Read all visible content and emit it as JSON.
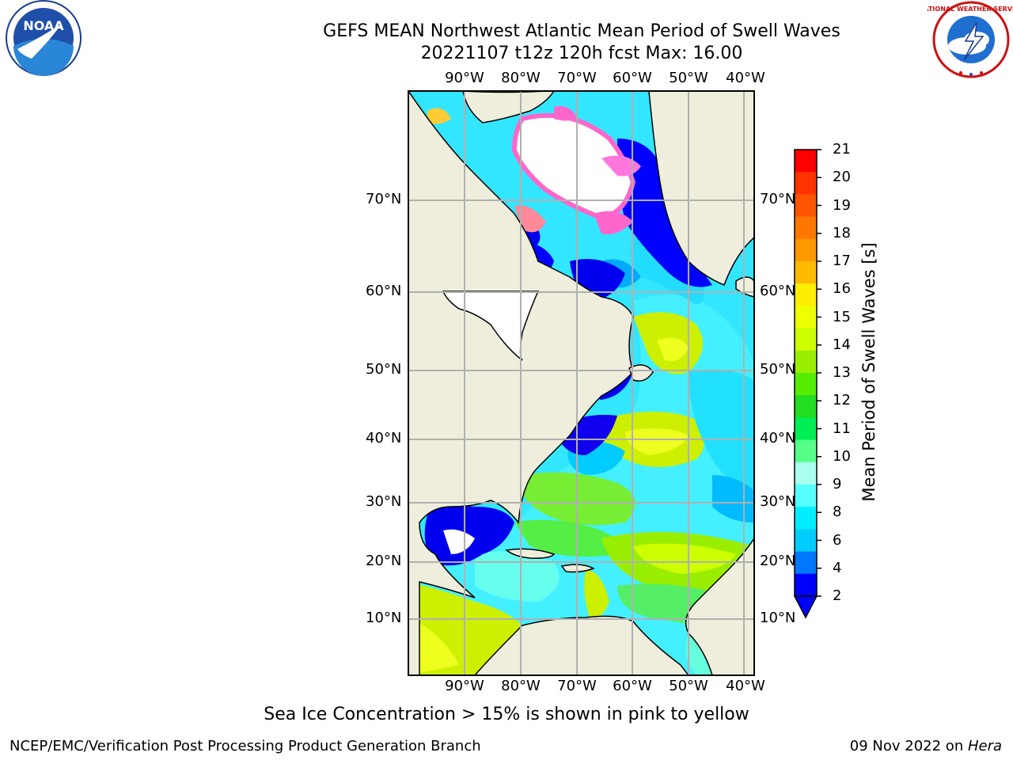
{
  "header": {
    "title_line1": "GEFS MEAN Northwest Atlantic Mean Period of Swell Waves",
    "title_line2": "20221107 t12z 120h fcst   Max: 16.00"
  },
  "logos": {
    "noara_text": "NOAA",
    "nws_text": "NATIONAL WEATHER SERVICE"
  },
  "map": {
    "lon_labels": [
      "90°W",
      "80°W",
      "70°W",
      "60°W",
      "50°W",
      "40°W"
    ],
    "lat_labels": [
      "70°N",
      "60°N",
      "50°N",
      "40°N",
      "30°N",
      "20°N",
      "10°N"
    ],
    "colors": {
      "land": "#efeedc",
      "ice_white": "#ffffff",
      "grid": "#b0b0b0"
    }
  },
  "colorbar": {
    "title": "Mean Period of Swell Waves [s]",
    "ticks": [
      "21",
      "20",
      "19",
      "18",
      "17",
      "16",
      "15",
      "14",
      "13",
      "12",
      "11",
      "10",
      "9",
      "8",
      "6",
      "4",
      "2"
    ],
    "colors": [
      "#ff0000",
      "#ff3300",
      "#ff5500",
      "#ff7700",
      "#ff9900",
      "#ffbb00",
      "#ffee00",
      "#eeff00",
      "#ccff00",
      "#99ee00",
      "#55ee00",
      "#22dd22",
      "#00ee55",
      "#55ff88",
      "#aaffee",
      "#55ffff",
      "#00eeff",
      "#00ccff",
      "#0077ff",
      "#0000ff"
    ]
  },
  "footer": {
    "note": "Sea Ice Concentration > 15% is shown in pink to yellow",
    "left": "NCEP/EMC/Verification Post Processing Product Generation Branch",
    "right_date": "09 Nov 2022 on ",
    "right_host": "Hera"
  }
}
